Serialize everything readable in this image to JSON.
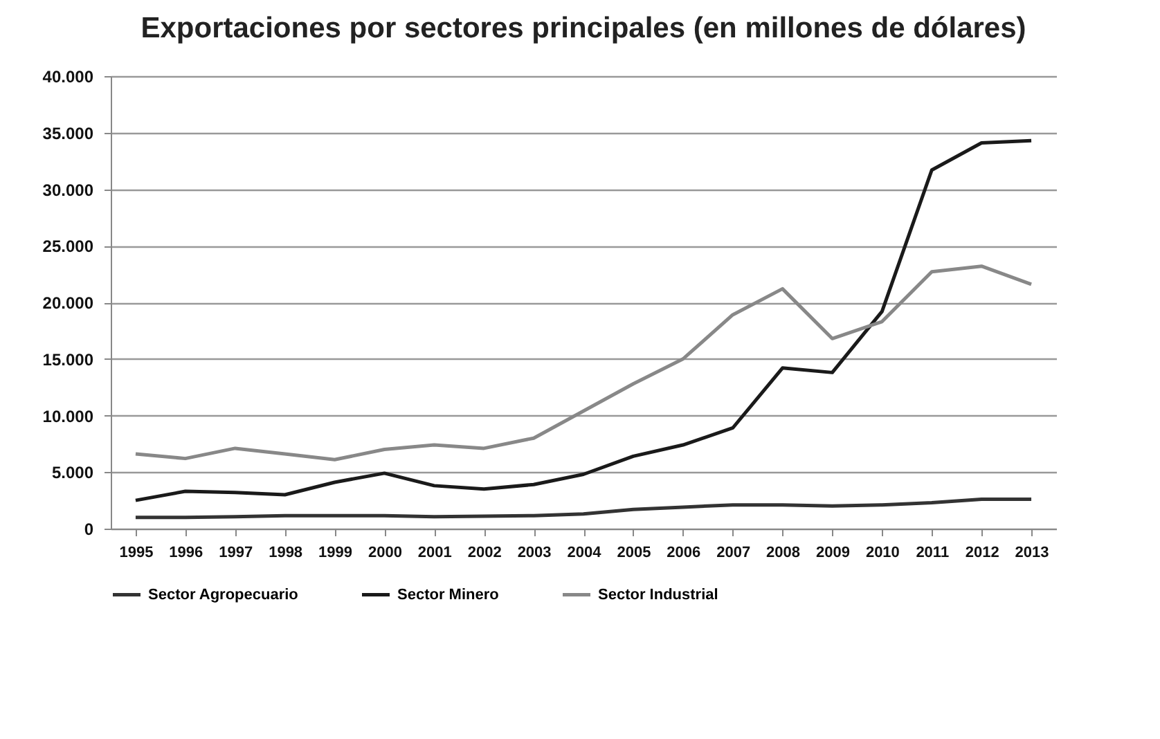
{
  "chart_data": {
    "type": "line",
    "title": "Exportaciones por sectores principales (en millones de dólares)",
    "categories": [
      "1995",
      "1996",
      "1997",
      "1998",
      "1999",
      "2000",
      "2001",
      "2002",
      "2003",
      "2004",
      "2005",
      "2006",
      "2007",
      "2008",
      "2009",
      "2010",
      "2011",
      "2012",
      "2013"
    ],
    "series": [
      {
        "name": "Sector Agropecuario",
        "color": "#333333",
        "values": [
          1000,
          1000,
          1050,
          1150,
          1150,
          1150,
          1050,
          1100,
          1150,
          1300,
          1700,
          1900,
          2100,
          2100,
          2000,
          2100,
          2300,
          2600,
          2600
        ]
      },
      {
        "name": "Sector Minero",
        "color": "#1a1a1a",
        "values": [
          2500,
          3300,
          3200,
          3000,
          4100,
          4900,
          3800,
          3500,
          3900,
          4800,
          6400,
          7400,
          8900,
          14200,
          13800,
          19200,
          31700,
          34100,
          34300
        ]
      },
      {
        "name": "Sector Industrial",
        "color": "#888888",
        "values": [
          6600,
          6200,
          7100,
          6600,
          6100,
          7000,
          7400,
          7100,
          8000,
          10400,
          12800,
          15000,
          18900,
          21200,
          16800,
          18300,
          22700,
          23200,
          21600
        ]
      }
    ],
    "ylim": [
      0,
      40000
    ],
    "yticks": [
      0,
      {
        "value": 5000,
        "label": "5.000"
      },
      {
        "value": 10000,
        "label": "10.000"
      },
      {
        "value": 15000,
        "label": "15.000"
      },
      {
        "value": 20000,
        "label": "20.000"
      },
      {
        "value": 25000,
        "label": "25.000"
      },
      {
        "value": 30000,
        "label": "30.000"
      },
      {
        "value": 35000,
        "label": "35.000"
      },
      {
        "value": 40000,
        "label": "40.000"
      }
    ],
    "grid": "y",
    "legend": "bottom",
    "line_style": "solid"
  }
}
